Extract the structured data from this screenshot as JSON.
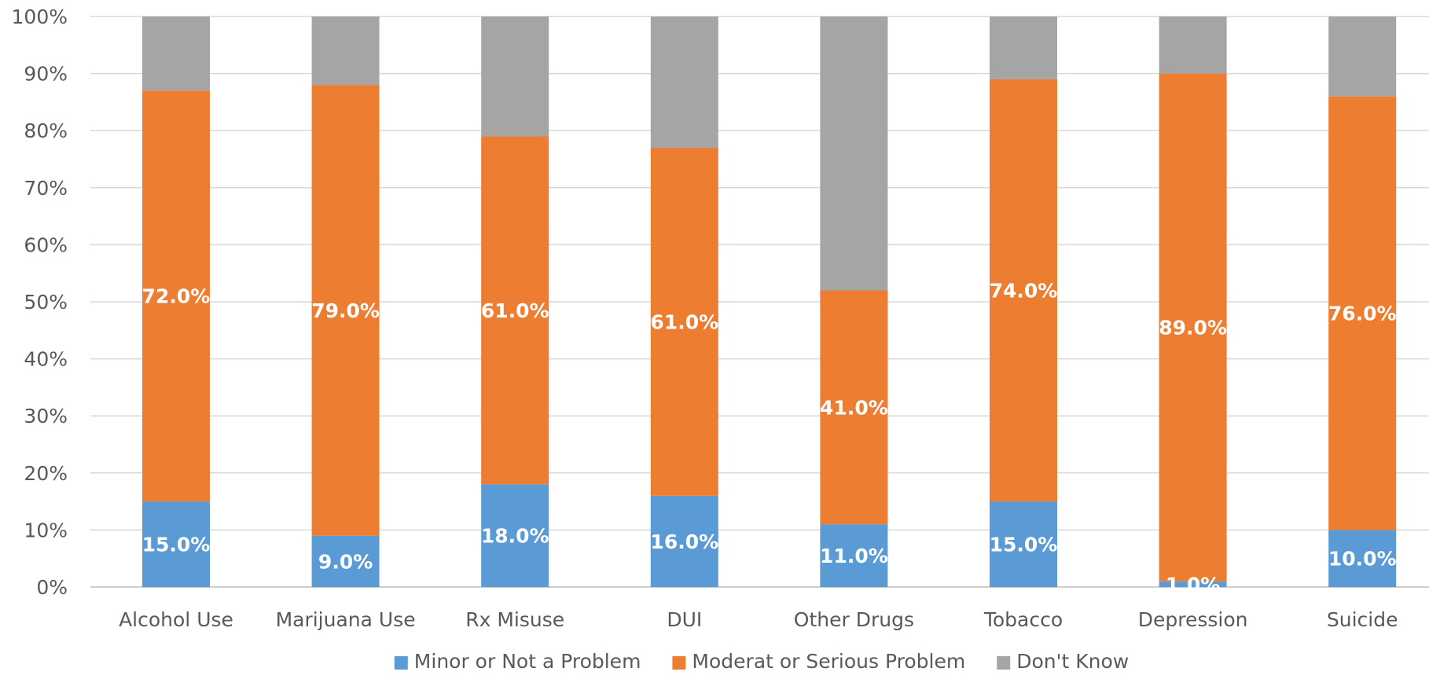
{
  "chart_data": {
    "type": "bar",
    "stacked": true,
    "title": "",
    "xlabel": "",
    "ylabel": "",
    "ylim": [
      0,
      100
    ],
    "y_ticks": [
      "0%",
      "10%",
      "20%",
      "30%",
      "40%",
      "50%",
      "60%",
      "70%",
      "80%",
      "90%",
      "100%"
    ],
    "grid": true,
    "legend_position": "bottom",
    "categories": [
      "Alcohol Use",
      "Marijuana Use",
      "Rx Misuse",
      "DUI",
      "Other Drugs",
      "Tobacco",
      "Depression",
      "Suicide"
    ],
    "series": [
      {
        "name": "Minor or Not a Problem",
        "color": "#5B9BD5",
        "values": [
          15,
          9,
          18,
          16,
          11,
          15,
          1,
          10
        ],
        "labels": [
          "15.0%",
          "9.0%",
          "18.0%",
          "16.0%",
          "11.0%",
          "15.0%",
          "1.0%",
          "10.0%"
        ]
      },
      {
        "name": "Moderat or Serious Problem",
        "color": "#ED7D31",
        "values": [
          72,
          79,
          61,
          61,
          41,
          74,
          89,
          76
        ],
        "labels": [
          "72.0%",
          "79.0%",
          "61.0%",
          "61.0%",
          "41.0%",
          "74.0%",
          "89.0%",
          "76.0%"
        ]
      },
      {
        "name": "Don't Know",
        "color": "#A5A5A5",
        "values": [
          13,
          12,
          21,
          23,
          48,
          11,
          10,
          14
        ],
        "labels": []
      }
    ]
  }
}
